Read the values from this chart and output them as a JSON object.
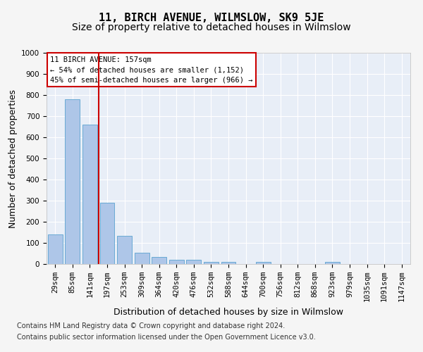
{
  "title": "11, BIRCH AVENUE, WILMSLOW, SK9 5JE",
  "subtitle": "Size of property relative to detached houses in Wilmslow",
  "xlabel": "Distribution of detached houses by size in Wilmslow",
  "ylabel": "Number of detached properties",
  "bar_values": [
    140,
    780,
    660,
    290,
    135,
    55,
    33,
    20,
    20,
    10,
    10,
    0,
    10,
    0,
    0,
    0,
    10,
    0,
    0,
    0,
    0
  ],
  "bar_labels": [
    "29sqm",
    "85sqm",
    "141sqm",
    "197sqm",
    "253sqm",
    "309sqm",
    "364sqm",
    "420sqm",
    "476sqm",
    "532sqm",
    "588sqm",
    "644sqm",
    "700sqm",
    "756sqm",
    "812sqm",
    "868sqm",
    "923sqm",
    "979sqm",
    "1035sqm",
    "1091sqm",
    "1147sqm"
  ],
  "bar_color": "#aec6e8",
  "bar_edge_color": "#6aaad4",
  "vline_x_index": 2,
  "vline_color": "#cc0000",
  "annotation_text": "11 BIRCH AVENUE: 157sqm\n← 54% of detached houses are smaller (1,152)\n45% of semi-detached houses are larger (966) →",
  "annotation_box_color": "#cc0000",
  "ylim": [
    0,
    1000
  ],
  "yticks": [
    0,
    100,
    200,
    300,
    400,
    500,
    600,
    700,
    800,
    900,
    1000
  ],
  "footer_line1": "Contains HM Land Registry data © Crown copyright and database right 2024.",
  "footer_line2": "Contains public sector information licensed under the Open Government Licence v3.0.",
  "bg_color": "#e8eef7",
  "grid_color": "#ffffff",
  "title_fontsize": 11,
  "subtitle_fontsize": 10,
  "axis_label_fontsize": 9,
  "tick_fontsize": 7.5,
  "annotation_fontsize": 7.5,
  "footer_fontsize": 7
}
